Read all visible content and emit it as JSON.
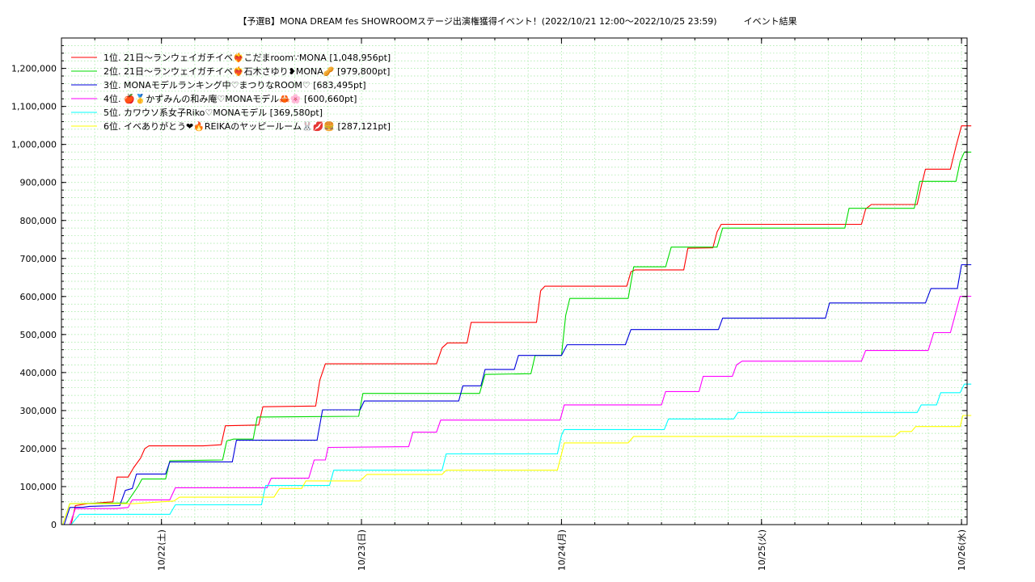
{
  "chart_data": {
    "type": "line",
    "title": "【予選B】MONA DREAM fes SHOWROOMステージ出演権獲得イベント！(2022/10/21 12:00〜2022/10/25 23:59)　　　イベント結果",
    "xlabel": "",
    "ylabel": "",
    "grid": true,
    "legend_position": "top-left",
    "x_range": [
      "2022-10-21 12:00",
      "2022-10-26 00:40"
    ],
    "ylim": [
      0,
      1280000
    ],
    "y_ticks": [
      0,
      100000,
      200000,
      300000,
      400000,
      500000,
      600000,
      700000,
      800000,
      900000,
      1000000,
      1100000,
      1200000
    ],
    "y_tick_labels": [
      "0",
      "100,000",
      "200,000",
      "300,000",
      "400,000",
      "500,000",
      "600,000",
      "700,000",
      "800,000",
      "900,000",
      "1,000,000",
      "1,100,000",
      "1,200,000"
    ],
    "x_ticks": [
      "2022-10-22 00:00",
      "2022-10-23 00:00",
      "2022-10-24 00:00",
      "2022-10-25 00:00",
      "2022-10-26 00:00"
    ],
    "x_tick_labels": [
      "10/22(土)",
      "10/23(日)",
      "10/24(月)",
      "10/25(火)",
      "10/26(水)"
    ],
    "series": [
      {
        "name": "1位. 21日〜ランウェイガチイベ❤️‍🔥こだまroom∵MONA [1,048,956pt]",
        "color": "#ff0000",
        "points": [
          [
            "2022-10-21 13:10",
            0
          ],
          [
            "2022-10-21 13:40",
            50000
          ],
          [
            "2022-10-21 15:10",
            55000
          ],
          [
            "2022-10-21 18:10",
            60000
          ],
          [
            "2022-10-21 18:40",
            125000
          ],
          [
            "2022-10-21 20:00",
            125000
          ],
          [
            "2022-10-21 20:40",
            150000
          ],
          [
            "2022-10-21 21:30",
            175000
          ],
          [
            "2022-10-21 22:00",
            200000
          ],
          [
            "2022-10-21 22:30",
            207000
          ],
          [
            "2022-10-22 05:00",
            207000
          ],
          [
            "2022-10-22 07:10",
            210000
          ],
          [
            "2022-10-22 07:40",
            260000
          ],
          [
            "2022-10-22 11:40",
            262000
          ],
          [
            "2022-10-22 12:10",
            310000
          ],
          [
            "2022-10-22 18:30",
            312000
          ],
          [
            "2022-10-22 19:00",
            380000
          ],
          [
            "2022-10-22 19:40",
            423000
          ],
          [
            "2022-10-23 09:00",
            423000
          ],
          [
            "2022-10-23 09:40",
            465000
          ],
          [
            "2022-10-23 10:20",
            478000
          ],
          [
            "2022-10-23 12:40",
            478000
          ],
          [
            "2022-10-23 13:10",
            532000
          ],
          [
            "2022-10-23 21:00",
            532000
          ],
          [
            "2022-10-23 21:30",
            615000
          ],
          [
            "2022-10-23 22:00",
            627000
          ],
          [
            "2022-10-24 07:50",
            627000
          ],
          [
            "2022-10-24 08:20",
            665000
          ],
          [
            "2022-10-24 08:50",
            670000
          ],
          [
            "2022-10-24 14:40",
            670000
          ],
          [
            "2022-10-24 15:10",
            727000
          ],
          [
            "2022-10-24 18:10",
            728000
          ],
          [
            "2022-10-24 18:40",
            770000
          ],
          [
            "2022-10-24 19:10",
            790000
          ],
          [
            "2022-10-25 12:00",
            790000
          ],
          [
            "2022-10-25 12:30",
            830000
          ],
          [
            "2022-10-25 13:10",
            842000
          ],
          [
            "2022-10-25 18:40",
            842000
          ],
          [
            "2022-10-25 19:10",
            890000
          ],
          [
            "2022-10-25 19:40",
            935000
          ],
          [
            "2022-10-25 22:40",
            935000
          ],
          [
            "2022-10-25 23:20",
            995000
          ],
          [
            "2022-10-26 00:00",
            1048956
          ],
          [
            "2022-10-26 01:10",
            1048956
          ]
        ]
      },
      {
        "name": "2位. 21日〜ランウェイガチイベ❤️‍🔥石木さゆり❥MONA🥜 [979,800pt]",
        "color": "#00dd00",
        "points": [
          [
            "2022-10-21 12:10",
            0
          ],
          [
            "2022-10-21 13:00",
            55000
          ],
          [
            "2022-10-21 19:50",
            57000
          ],
          [
            "2022-10-21 21:10",
            100000
          ],
          [
            "2022-10-21 21:40",
            120000
          ],
          [
            "2022-10-22 00:30",
            120000
          ],
          [
            "2022-10-22 01:00",
            168000
          ],
          [
            "2022-10-22 07:20",
            170000
          ],
          [
            "2022-10-22 07:50",
            220000
          ],
          [
            "2022-10-22 08:40",
            225000
          ],
          [
            "2022-10-22 11:00",
            225000
          ],
          [
            "2022-10-22 11:30",
            283000
          ],
          [
            "2022-10-22 23:40",
            285000
          ],
          [
            "2022-10-23 00:10",
            345000
          ],
          [
            "2022-10-23 14:10",
            345000
          ],
          [
            "2022-10-23 14:50",
            395000
          ],
          [
            "2022-10-23 20:20",
            397000
          ],
          [
            "2022-10-23 20:50",
            445000
          ],
          [
            "2022-10-24 00:00",
            445000
          ],
          [
            "2022-10-24 00:30",
            550000
          ],
          [
            "2022-10-24 01:00",
            595000
          ],
          [
            "2022-10-24 08:00",
            595000
          ],
          [
            "2022-10-24 08:40",
            678000
          ],
          [
            "2022-10-24 12:30",
            678000
          ],
          [
            "2022-10-24 13:10",
            730000
          ],
          [
            "2022-10-24 18:40",
            730000
          ],
          [
            "2022-10-24 19:20",
            780000
          ],
          [
            "2022-10-25 10:00",
            780000
          ],
          [
            "2022-10-25 10:30",
            832000
          ],
          [
            "2022-10-25 18:20",
            832000
          ],
          [
            "2022-10-25 19:00",
            903000
          ],
          [
            "2022-10-25 23:20",
            903000
          ],
          [
            "2022-10-25 23:50",
            955000
          ],
          [
            "2022-10-26 00:20",
            979800
          ],
          [
            "2022-10-26 01:10",
            979800
          ]
        ]
      },
      {
        "name": "3位. MONAモデルランキング中♡まつりなROOM♡ [683,495pt]",
        "color": "#0000dd",
        "points": [
          [
            "2022-10-21 12:20",
            0
          ],
          [
            "2022-10-21 13:00",
            45000
          ],
          [
            "2022-10-21 14:40",
            46000
          ],
          [
            "2022-10-21 15:20",
            48000
          ],
          [
            "2022-10-21 19:00",
            50000
          ],
          [
            "2022-10-21 19:40",
            90000
          ],
          [
            "2022-10-21 20:30",
            95000
          ],
          [
            "2022-10-21 21:00",
            133000
          ],
          [
            "2022-10-22 00:30",
            133000
          ],
          [
            "2022-10-22 01:00",
            165000
          ],
          [
            "2022-10-22 08:30",
            165000
          ],
          [
            "2022-10-22 09:00",
            222000
          ],
          [
            "2022-10-22 18:40",
            222000
          ],
          [
            "2022-10-22 19:20",
            302000
          ],
          [
            "2022-10-22 23:50",
            302000
          ],
          [
            "2022-10-23 00:20",
            325000
          ],
          [
            "2022-10-23 11:40",
            325000
          ],
          [
            "2022-10-23 12:10",
            365000
          ],
          [
            "2022-10-23 14:20",
            365000
          ],
          [
            "2022-10-23 14:50",
            408000
          ],
          [
            "2022-10-23 18:20",
            408000
          ],
          [
            "2022-10-23 18:50",
            445000
          ],
          [
            "2022-10-24 00:00",
            445000
          ],
          [
            "2022-10-24 00:40",
            473000
          ],
          [
            "2022-10-24 07:40",
            473000
          ],
          [
            "2022-10-24 08:20",
            513000
          ],
          [
            "2022-10-24 18:50",
            513000
          ],
          [
            "2022-10-24 19:20",
            543000
          ],
          [
            "2022-10-25 07:40",
            543000
          ],
          [
            "2022-10-25 08:10",
            583000
          ],
          [
            "2022-10-25 19:40",
            583000
          ],
          [
            "2022-10-25 20:20",
            621000
          ],
          [
            "2022-10-25 23:30",
            621000
          ],
          [
            "2022-10-26 00:00",
            683495
          ],
          [
            "2022-10-26 01:10",
            683495
          ]
        ]
      },
      {
        "name": "4位. 🍎🥇かずみんの和み庵♡MONAモデル🦀🌸 [600,660pt]",
        "color": "#ff00ff",
        "points": [
          [
            "2022-10-21 13:00",
            0
          ],
          [
            "2022-10-21 13:40",
            42000
          ],
          [
            "2022-10-21 18:30",
            42000
          ],
          [
            "2022-10-21 20:00",
            45000
          ],
          [
            "2022-10-21 20:30",
            65000
          ],
          [
            "2022-10-22 01:00",
            65000
          ],
          [
            "2022-10-22 01:40",
            97000
          ],
          [
            "2022-10-22 12:40",
            97000
          ],
          [
            "2022-10-22 13:10",
            122000
          ],
          [
            "2022-10-22 17:40",
            122000
          ],
          [
            "2022-10-22 18:20",
            170000
          ],
          [
            "2022-10-22 19:40",
            170000
          ],
          [
            "2022-10-22 20:00",
            203000
          ],
          [
            "2022-10-23 05:40",
            205000
          ],
          [
            "2022-10-23 06:10",
            243000
          ],
          [
            "2022-10-23 09:00",
            243000
          ],
          [
            "2022-10-23 09:30",
            275000
          ],
          [
            "2022-10-23 23:50",
            275000
          ],
          [
            "2022-10-24 00:20",
            315000
          ],
          [
            "2022-10-24 12:00",
            315000
          ],
          [
            "2022-10-24 12:30",
            350000
          ],
          [
            "2022-10-24 16:30",
            350000
          ],
          [
            "2022-10-24 17:00",
            390000
          ],
          [
            "2022-10-24 20:30",
            390000
          ],
          [
            "2022-10-24 21:00",
            420000
          ],
          [
            "2022-10-24 21:40",
            430000
          ],
          [
            "2022-10-25 12:00",
            430000
          ],
          [
            "2022-10-25 12:30",
            458000
          ],
          [
            "2022-10-25 20:00",
            458000
          ],
          [
            "2022-10-25 20:40",
            505000
          ],
          [
            "2022-10-25 22:40",
            505000
          ],
          [
            "2022-10-25 23:20",
            560000
          ],
          [
            "2022-10-25 23:50",
            600660
          ],
          [
            "2022-10-26 01:10",
            600660
          ]
        ]
      },
      {
        "name": "5位. カワウソ系女子Riko♡MONAモデル [369,580pt]",
        "color": "#00ffff",
        "points": [
          [
            "2022-10-21 13:10",
            0
          ],
          [
            "2022-10-21 14:10",
            27000
          ],
          [
            "2022-10-22 01:00",
            27000
          ],
          [
            "2022-10-22 01:40",
            52000
          ],
          [
            "2022-10-22 12:00",
            52000
          ],
          [
            "2022-10-22 12:30",
            103000
          ],
          [
            "2022-10-22 20:10",
            103000
          ],
          [
            "2022-10-22 20:40",
            143000
          ],
          [
            "2022-10-23 09:40",
            143000
          ],
          [
            "2022-10-23 10:10",
            186000
          ],
          [
            "2022-10-23 23:30",
            186000
          ],
          [
            "2022-10-24 00:00",
            235000
          ],
          [
            "2022-10-24 00:20",
            250000
          ],
          [
            "2022-10-24 12:20",
            250000
          ],
          [
            "2022-10-24 12:50",
            278000
          ],
          [
            "2022-10-24 20:40",
            278000
          ],
          [
            "2022-10-24 21:10",
            295000
          ],
          [
            "2022-10-25 18:40",
            295000
          ],
          [
            "2022-10-25 19:10",
            315000
          ],
          [
            "2022-10-25 21:00",
            315000
          ],
          [
            "2022-10-25 21:30",
            347000
          ],
          [
            "2022-10-25 23:50",
            347000
          ],
          [
            "2022-10-26 00:20",
            369580
          ],
          [
            "2022-10-26 01:10",
            369580
          ]
        ]
      },
      {
        "name": "6位. イベありがとう❤🔥REIKAのヤッピールーム🐰💋🍔 [287,121pt]",
        "color": "#ffff00",
        "points": [
          [
            "2022-10-21 12:10",
            0
          ],
          [
            "2022-10-21 13:00",
            55000
          ],
          [
            "2022-10-21 20:40",
            55000
          ],
          [
            "2022-10-22 01:30",
            62000
          ],
          [
            "2022-10-22 02:10",
            72000
          ],
          [
            "2022-10-22 13:30",
            72000
          ],
          [
            "2022-10-22 14:10",
            95000
          ],
          [
            "2022-10-22 16:50",
            95000
          ],
          [
            "2022-10-22 17:20",
            115000
          ],
          [
            "2022-10-22 23:50",
            115000
          ],
          [
            "2022-10-23 00:40",
            132000
          ],
          [
            "2022-10-23 09:40",
            132000
          ],
          [
            "2022-10-23 10:10",
            143000
          ],
          [
            "2022-10-23 23:30",
            143000
          ],
          [
            "2022-10-24 00:00",
            185000
          ],
          [
            "2022-10-24 00:20",
            215000
          ],
          [
            "2022-10-24 08:00",
            215000
          ],
          [
            "2022-10-24 08:40",
            232000
          ],
          [
            "2022-10-25 16:00",
            232000
          ],
          [
            "2022-10-25 16:40",
            245000
          ],
          [
            "2022-10-25 18:00",
            245000
          ],
          [
            "2022-10-25 18:30",
            258000
          ],
          [
            "2022-10-25 23:50",
            258000
          ],
          [
            "2022-10-26 00:10",
            287121
          ],
          [
            "2022-10-26 01:10",
            287121
          ]
        ]
      }
    ]
  }
}
